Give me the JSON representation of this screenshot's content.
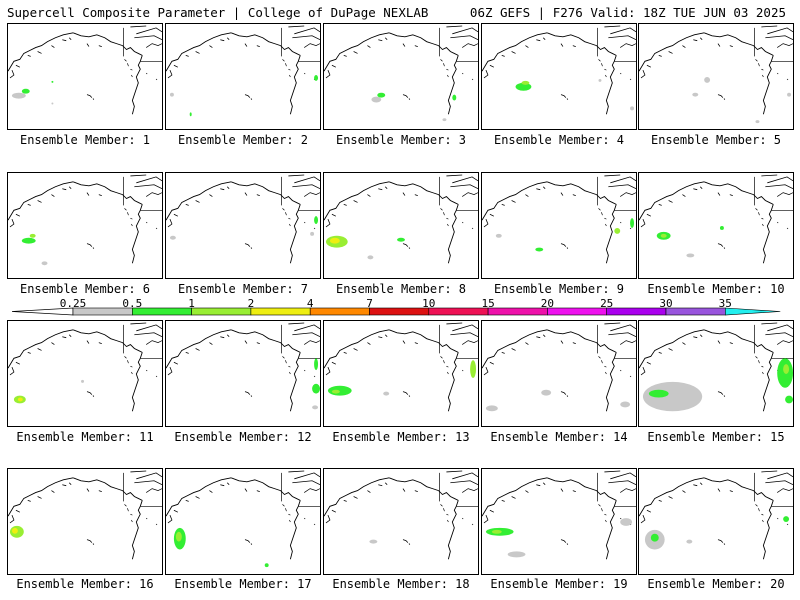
{
  "header": {
    "left": "Supercell Composite Parameter | College of DuPage NEXLAB",
    "right": "06Z GEFS | F276 Valid: 18Z TUE JUN 03 2025"
  },
  "colorbar": {
    "labels": [
      "0.25",
      "0.5",
      "1",
      "2",
      "4",
      "7",
      "10",
      "15",
      "20",
      "25",
      "30",
      "35"
    ],
    "colors": [
      "#c8c8c8",
      "#33ee33",
      "#99ee33",
      "#eeee11",
      "#ff8800",
      "#dd1111",
      "#ee1155",
      "#ee11aa",
      "#ee11ee",
      "#aa00ee",
      "#9955dd",
      "#22eeee"
    ]
  },
  "members": [
    {
      "label": "Ensemble Member: 1"
    },
    {
      "label": "Ensemble Member: 2"
    },
    {
      "label": "Ensemble Member: 3"
    },
    {
      "label": "Ensemble Member: 4"
    },
    {
      "label": "Ensemble Member: 5"
    },
    {
      "label": "Ensemble Member: 6"
    },
    {
      "label": "Ensemble Member: 7"
    },
    {
      "label": "Ensemble Member: 8"
    },
    {
      "label": "Ensemble Member: 9"
    },
    {
      "label": "Ensemble Member: 10"
    },
    {
      "label": "Ensemble Member: 11"
    },
    {
      "label": "Ensemble Member: 12"
    },
    {
      "label": "Ensemble Member: 13"
    },
    {
      "label": "Ensemble Member: 14"
    },
    {
      "label": "Ensemble Member: 15"
    },
    {
      "label": "Ensemble Member: 16"
    },
    {
      "label": "Ensemble Member: 17"
    },
    {
      "label": "Ensemble Member: 18"
    },
    {
      "label": "Ensemble Member: 19"
    },
    {
      "label": "Ensemble Member: 20"
    }
  ]
}
